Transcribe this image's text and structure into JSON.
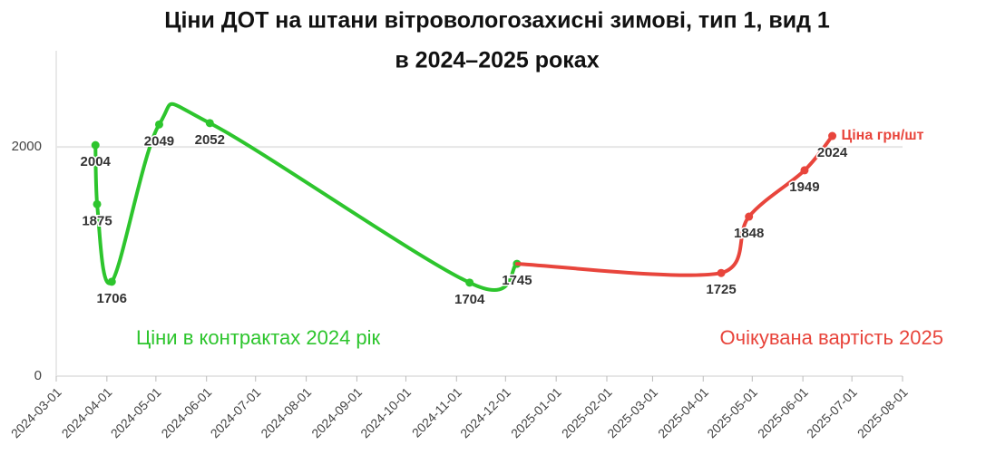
{
  "chart_data": {
    "type": "line",
    "title": [
      "Ціни ДОТ на штани вітровологозахисні зимові, тип 1, вид 1",
      "в 2024–2025 роках"
    ],
    "series": [
      {
        "color": "#2dc52d",
        "x": [
          "2024-03-25",
          "2024-03-26",
          "2024-04-04",
          "2024-05-03",
          "2024-06-03",
          "2024-11-09",
          "2024-12-08"
        ],
        "values": [
          2004,
          1875,
          1706,
          2049,
          2052,
          1704,
          1745
        ]
      },
      {
        "name": "Ціна грн/шт",
        "color": "#e8453c",
        "x": [
          "2024-12-08",
          "2025-04-12",
          "2025-04-29",
          "2025-06-02",
          "2025-06-19"
        ],
        "values": [
          1745,
          1725,
          1848,
          1949,
          2024
        ]
      }
    ],
    "annotations": [
      {
        "text": "Ціни в контрактах 2024 рік",
        "color": "#2dc52d"
      },
      {
        "text": "Очікувана вартість 2025",
        "color": "#e8453c"
      }
    ],
    "xlim": [
      "2024-03-01",
      "2025-08-01"
    ],
    "xticks": [
      "2024-03-01",
      "2024-04-01",
      "2024-05-01",
      "2024-06-01",
      "2024-07-01",
      "2024-08-01",
      "2024-09-01",
      "2024-10-01",
      "2024-11-01",
      "2024-12-01",
      "2025-01-01",
      "2025-02-01",
      "2025-03-01",
      "2025-04-01",
      "2025-05-01",
      "2025-06-01",
      "2025-07-01",
      "2025-08-01"
    ],
    "ylim": [
      1500,
      2200
    ],
    "yticks": [
      {
        "value": 1500,
        "label": "0"
      },
      2000
    ],
    "grid": true
  }
}
